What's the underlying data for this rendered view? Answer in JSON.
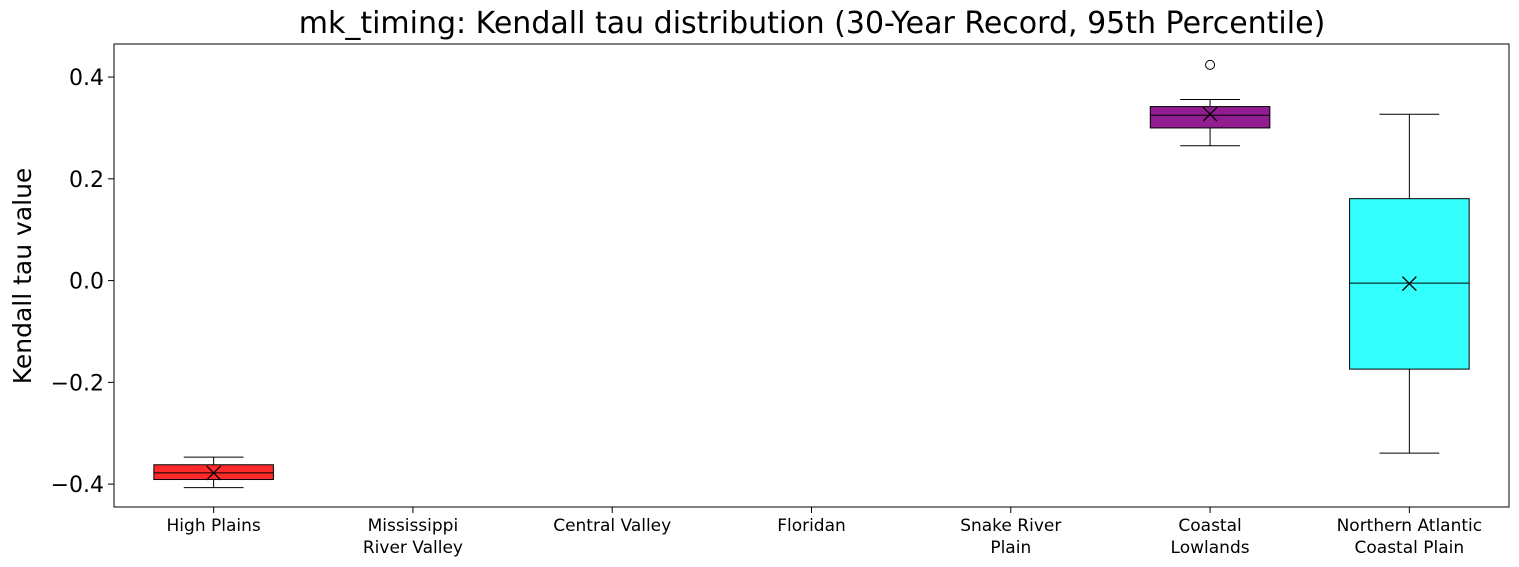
{
  "chart_data": {
    "type": "box",
    "title": "mk_timing: Kendall tau distribution (30-Year Record, 95th Percentile)",
    "xlabel": "",
    "ylabel": "Kendall tau value",
    "ylim": [
      -0.445,
      0.465
    ],
    "yticks": [
      -0.4,
      -0.2,
      0.0,
      0.2,
      0.4
    ],
    "ytick_labels": [
      "−0.4",
      "−0.2",
      "0.0",
      "0.2",
      "0.4"
    ],
    "grid": false,
    "categories": [
      {
        "lines": [
          "High Plains"
        ]
      },
      {
        "lines": [
          "Mississippi",
          "River Valley"
        ]
      },
      {
        "lines": [
          "Central Valley"
        ]
      },
      {
        "lines": [
          "Floridan"
        ]
      },
      {
        "lines": [
          "Snake River",
          "Plain"
        ]
      },
      {
        "lines": [
          "Coastal",
          "Lowlands"
        ]
      },
      {
        "lines": [
          "Northern Atlantic",
          "Coastal Plain"
        ]
      }
    ],
    "boxes": [
      {
        "category_index": 0,
        "color": "#ff2a2a",
        "whisker_low": -0.407,
        "q1": -0.391,
        "median": -0.378,
        "q3": -0.362,
        "whisker_high": -0.347,
        "mean": -0.378,
        "outliers": []
      },
      {
        "category_index": 5,
        "color": "#911d91",
        "whisker_low": 0.265,
        "q1": 0.3,
        "median": 0.325,
        "q3": 0.342,
        "whisker_high": 0.356,
        "mean": 0.327,
        "outliers": [
          0.424
        ]
      },
      {
        "category_index": 6,
        "color": "#33ffff",
        "whisker_low": -0.339,
        "q1": -0.174,
        "median": -0.005,
        "q3": 0.161,
        "whisker_high": 0.327,
        "mean": -0.006,
        "outliers": []
      }
    ]
  }
}
